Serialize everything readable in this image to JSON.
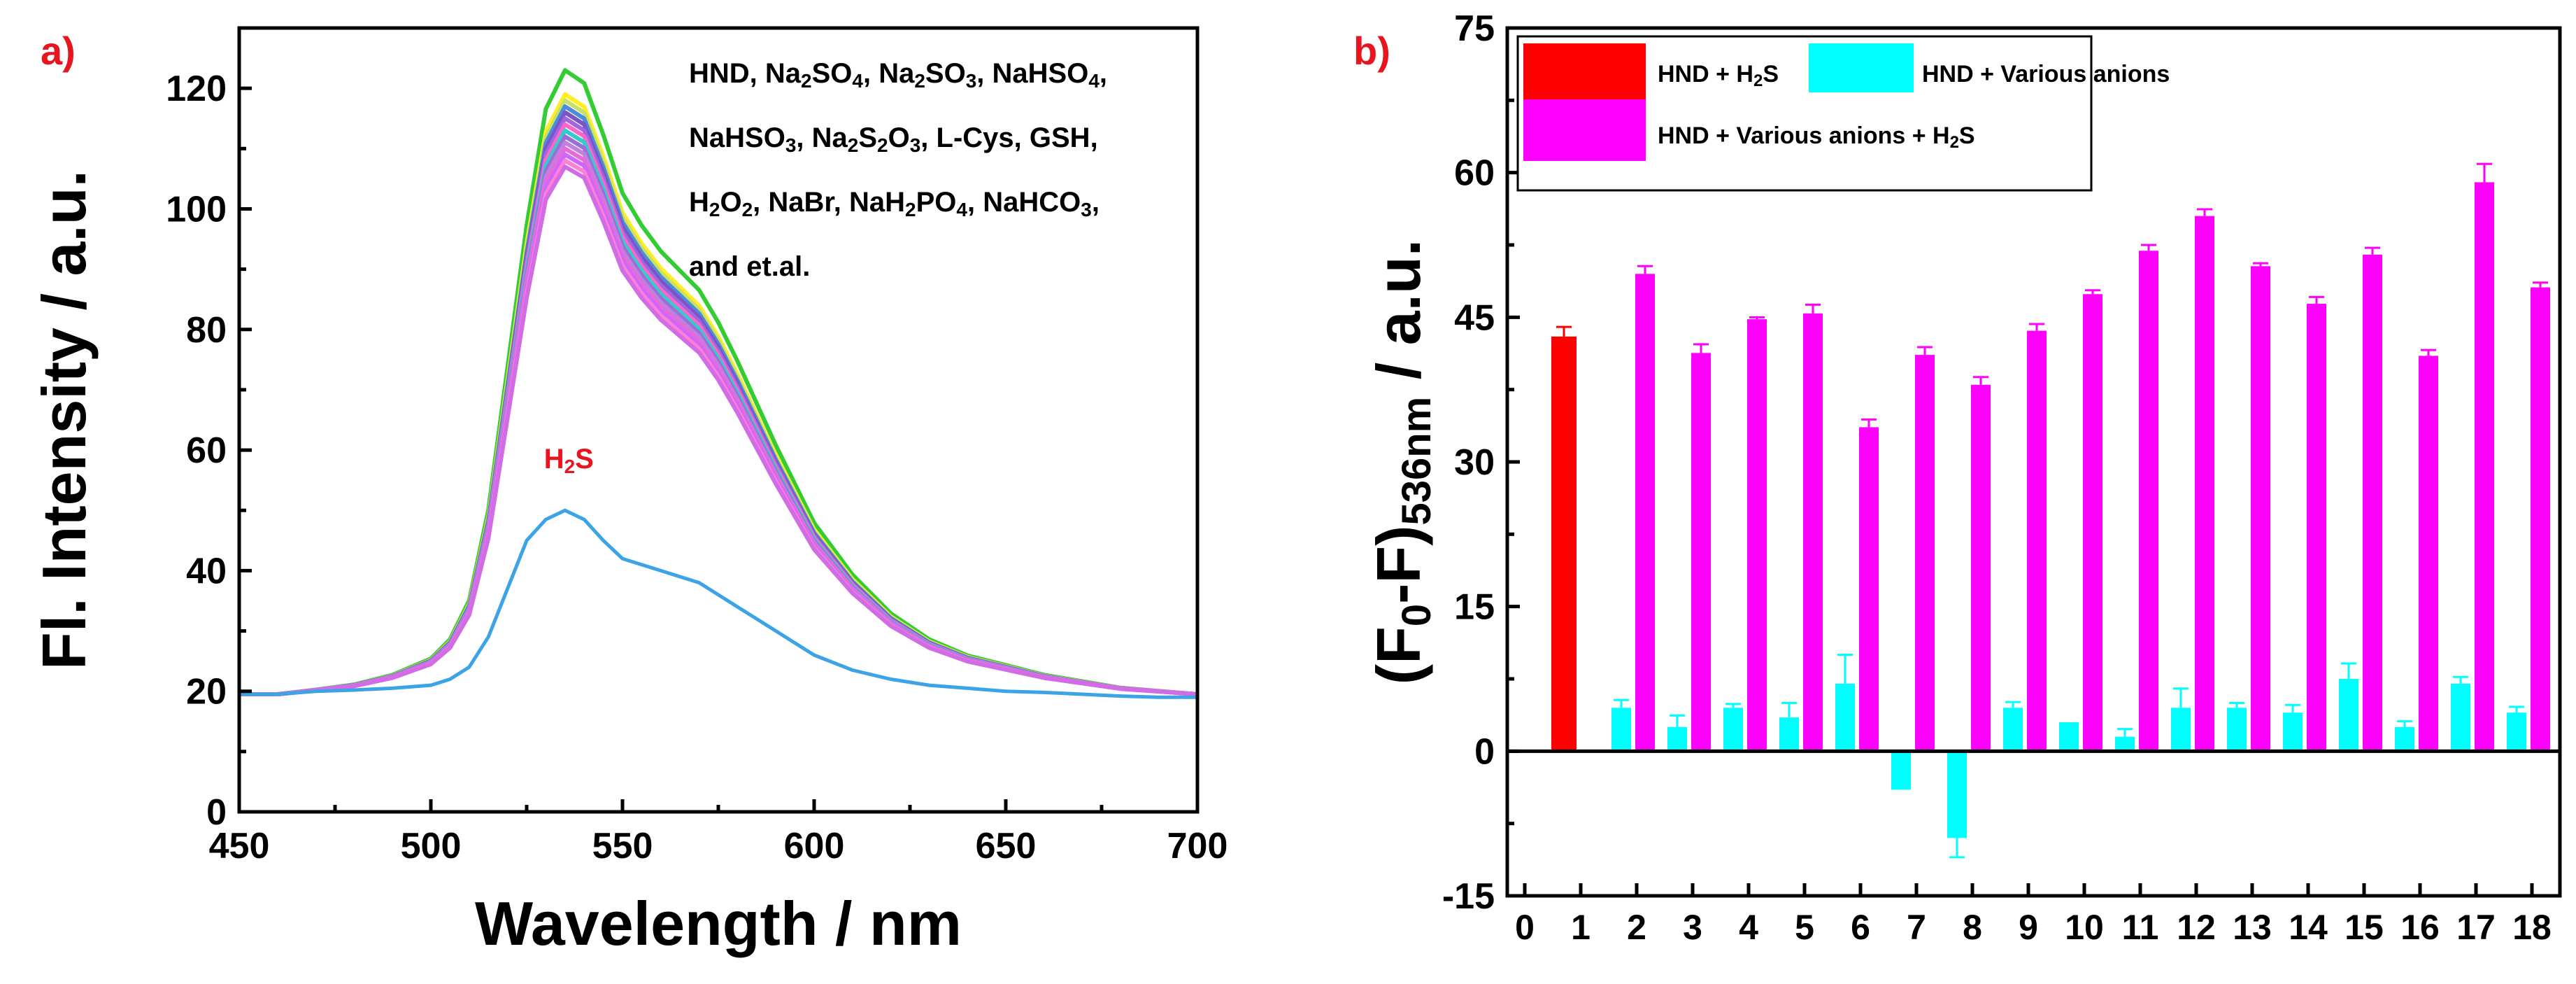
{
  "chart_data": [
    {
      "panel_label": "a)",
      "type": "line",
      "xlabel": "Wavelength / nm",
      "ylabel": "Fl. Intensity / a.u.",
      "xlim": [
        450,
        700
      ],
      "ylim": [
        0,
        130
      ],
      "xticks": [
        "450",
        "500",
        "550",
        "600",
        "650",
        "700"
      ],
      "yticks": [
        "0",
        "20",
        "40",
        "60",
        "80",
        "100",
        "120"
      ],
      "annotation_lines": [
        [
          "HND, Na",
          "2",
          "SO",
          "4",
          ", Na",
          "2",
          "SO",
          "3",
          ", NaHSO",
          "4",
          ","
        ],
        [
          "NaHSO",
          "3",
          ", Na",
          "2",
          "S",
          "2",
          "O",
          "3",
          ", L-Cys, GSH,"
        ],
        [
          "H",
          "2",
          "O",
          "2",
          ", NaBr, NaH",
          "2",
          "PO",
          "4",
          ", NaHCO",
          "3",
          ","
        ],
        [
          "and et.al."
        ]
      ],
      "h2s_label": [
        "H",
        "2",
        "S"
      ],
      "series_colors": [
        "#33cc33",
        "#ffee22",
        "#c8e06a",
        "#4b8cd8",
        "#7a54c8",
        "#a066e0",
        "#ff66cc",
        "#33cccc",
        "#9b6ed8",
        "#c080e0",
        "#e86ad8",
        "#cc66ff",
        "#ff7fd6",
        "#d26be6"
      ],
      "series_peaks": [
        123,
        119,
        118,
        117,
        116,
        115,
        114,
        113,
        112,
        111,
        110,
        109,
        108,
        107
      ],
      "main_series_shape": {
        "x": [
          450,
          460,
          470,
          480,
          490,
          500,
          505,
          510,
          515,
          520,
          525,
          530,
          535,
          540,
          545,
          550,
          555,
          560,
          565,
          570,
          575,
          580,
          590,
          600,
          610,
          620,
          630,
          640,
          650,
          660,
          670,
          680,
          690,
          700
        ],
        "y": [
          19.5,
          19.5,
          20.2,
          21,
          22.5,
          25,
          28,
          34,
          48,
          70,
          92,
          110,
          116,
          114,
          106,
          97,
          92,
          88,
          85,
          82,
          77,
          71,
          58,
          46,
          38,
          32,
          28,
          25.5,
          24,
          22.5,
          21.5,
          20.5,
          20,
          19.5
        ]
      },
      "h2s_series": {
        "name": "H2S",
        "color": "#3ba3e6",
        "x": [
          450,
          460,
          470,
          480,
          490,
          500,
          505,
          510,
          515,
          520,
          525,
          530,
          535,
          540,
          545,
          550,
          560,
          570,
          580,
          590,
          600,
          610,
          620,
          630,
          640,
          650,
          660,
          670,
          680,
          690,
          700
        ],
        "y": [
          19.5,
          19.5,
          20,
          20.2,
          20.5,
          21,
          22,
          24,
          29,
          37,
          45,
          48.5,
          50,
          48.5,
          45,
          42,
          40,
          38,
          34,
          30,
          26,
          23.5,
          22,
          21,
          20.5,
          20,
          19.8,
          19.5,
          19.2,
          19,
          19
        ]
      }
    },
    {
      "panel_label": "b)",
      "type": "bar",
      "xlabel": "",
      "ylabel_parts": [
        "(F",
        "0",
        "-F)",
        "536nm",
        " / a.u."
      ],
      "ylim": [
        -15,
        75
      ],
      "yticks": [
        "-15",
        "0",
        "15",
        "30",
        "45",
        "60",
        "75"
      ],
      "xlim": [
        0,
        18
      ],
      "xticks": [
        "0",
        "1",
        "2",
        "3",
        "4",
        "5",
        "6",
        "7",
        "8",
        "9",
        "10",
        "11",
        "12",
        "13",
        "14",
        "15",
        "16",
        "17",
        "18"
      ],
      "series": [
        {
          "name": "HND + H2S",
          "label_parts": [
            "HND + H",
            "2",
            "S"
          ],
          "color": "#ff0000",
          "x": [
            0.7
          ],
          "values": [
            43
          ],
          "errors": [
            1.0
          ]
        },
        {
          "name": "HND + Various anions",
          "label_parts": [
            "HND + Various anions"
          ],
          "color": "#00ffff",
          "x": [
            2,
            3,
            4,
            5,
            6,
            7,
            8,
            9,
            10,
            11,
            12,
            13,
            14,
            15,
            16,
            17,
            18
          ],
          "values": [
            4.5,
            2.5,
            4.5,
            3.5,
            7,
            -4,
            -9,
            4.5,
            3,
            1.5,
            4.5,
            4.5,
            4,
            7.5,
            2.5,
            7,
            4
          ],
          "errors": [
            0.8,
            1.2,
            0.4,
            1.5,
            3.0,
            0,
            2.0,
            0.6,
            0,
            0.8,
            2.0,
            0.5,
            0.8,
            1.6,
            0.6,
            0.7,
            0.6
          ]
        },
        {
          "name": "HND + Various anions + H2S",
          "label_parts": [
            "HND + Various anions + H",
            "2",
            "S"
          ],
          "color": "#ff00ff",
          "x": [
            2,
            3,
            4,
            5,
            6,
            7,
            8,
            9,
            10,
            11,
            12,
            13,
            14,
            15,
            16,
            17,
            18
          ],
          "values": [
            49.5,
            41.3,
            44.8,
            45.4,
            33.6,
            41.1,
            38,
            43.6,
            47.4,
            51.9,
            55.5,
            50.3,
            46.4,
            51.5,
            41,
            59,
            48.1
          ],
          "errors": [
            0.8,
            0.9,
            0.2,
            0.9,
            0.8,
            0.8,
            0.8,
            0.7,
            0.4,
            0.6,
            0.7,
            0.3,
            0.7,
            0.7,
            0.6,
            1.9,
            0.5
          ]
        }
      ]
    }
  ]
}
